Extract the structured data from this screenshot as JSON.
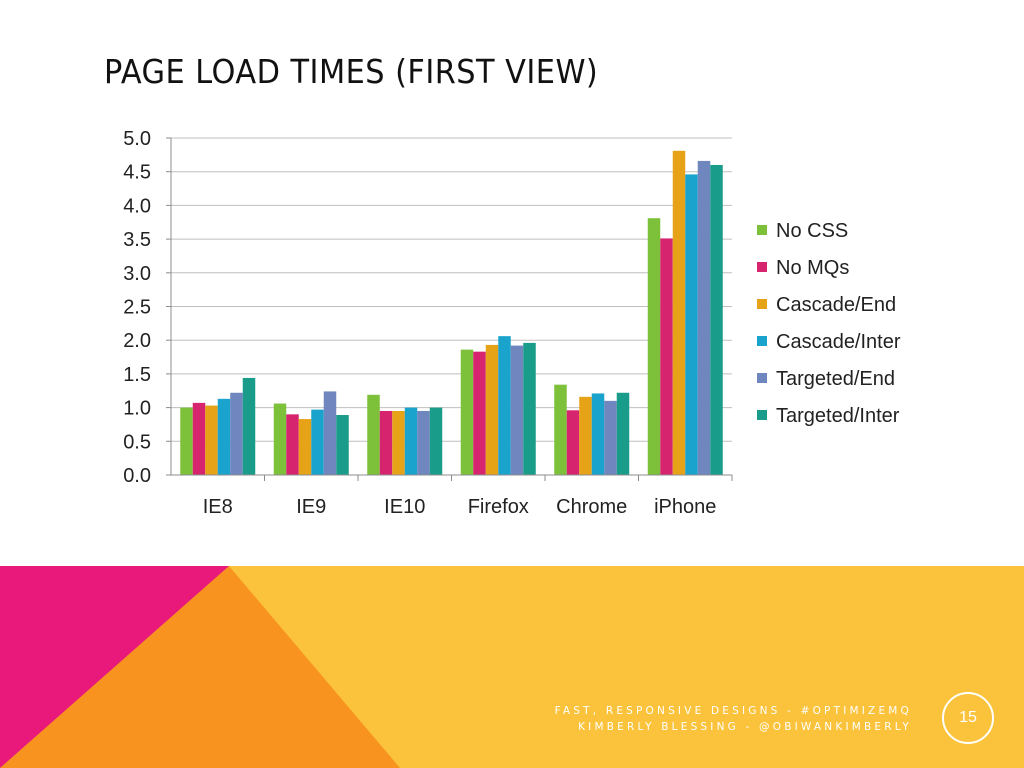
{
  "slide": {
    "title": "PAGE LOAD TIMES (FIRST VIEW)",
    "footer_line1": "FAST, RESPONSIVE DESIGNS - #OPTIMIZEMQ",
    "footer_line2": "KIMBERLY BLESSING - @OBIWANKIMBERLY",
    "page_number": "15"
  },
  "colors": {
    "pink": "#E8197A",
    "orange": "#F7931E",
    "yellow": "#FBC33B"
  },
  "chart_data": {
    "type": "bar",
    "title": "",
    "xlabel": "",
    "ylabel": "",
    "categories": [
      "IE8",
      "IE9",
      "IE10",
      "Firefox",
      "Chrome",
      "iPhone"
    ],
    "ylim": [
      0,
      5
    ],
    "yticks": [
      "0.0",
      "0.5",
      "1.0",
      "1.5",
      "2.0",
      "2.5",
      "3.0",
      "3.5",
      "4.0",
      "4.5",
      "5.0"
    ],
    "grid": true,
    "legend_position": "right",
    "series": [
      {
        "name": "No CSS",
        "color": "#7DC13A",
        "values": [
          1.0,
          1.06,
          1.19,
          1.86,
          1.34,
          3.81
        ]
      },
      {
        "name": "No MQs",
        "color": "#D7246E",
        "values": [
          1.07,
          0.9,
          0.95,
          1.83,
          0.96,
          3.51
        ]
      },
      {
        "name": "Cascade/End",
        "color": "#E7A318",
        "values": [
          1.03,
          0.83,
          0.95,
          1.93,
          1.16,
          4.81
        ]
      },
      {
        "name": "Cascade/Inter",
        "color": "#1AA3CC",
        "values": [
          1.13,
          0.97,
          1.0,
          2.06,
          1.21,
          4.46
        ]
      },
      {
        "name": "Targeted/End",
        "color": "#6F86BE",
        "values": [
          1.22,
          1.24,
          0.95,
          1.92,
          1.1,
          4.66
        ]
      },
      {
        "name": "Targeted/Inter",
        "color": "#1A9C8A",
        "values": [
          1.44,
          0.89,
          1.0,
          1.96,
          1.22,
          4.6
        ]
      }
    ]
  }
}
